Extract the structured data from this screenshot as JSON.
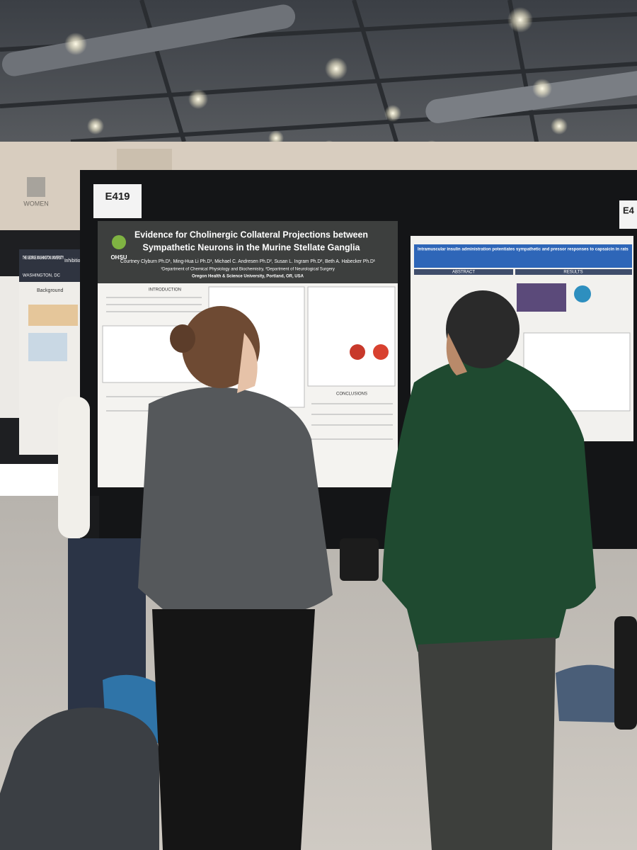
{
  "restroom_sign": "WOMEN",
  "left_poster": {
    "institution": "THE GEORGE WASHINGTON UNIVERSITY",
    "location": "WASHINGTON, DC",
    "title_fragment": "Inhibition",
    "section": "Background"
  },
  "main_poster": {
    "board_number": "E419",
    "logo": "OHSU",
    "title_lines": [
      "Evidence for Cholinergic Collateral Projections between",
      "Sympathetic Neurons in the Murine Stellate Ganglia"
    ],
    "authors": "Courtney Clyburn Ph.D¹, Ming-Hua Li Ph.D¹, Michael C. Andresen Ph.D², Susan L. Ingram Ph.D², Beth A. Habecker Ph.D¹",
    "affiliation_lines": [
      "¹Department of Chemical Physiology and Biochemistry, ²Department of Neurological Surgery",
      "Oregon Health & Science University, Portland, OR, USA"
    ],
    "sections": [
      "INTRODUCTION",
      "CONCLUSIONS"
    ]
  },
  "right_poster": {
    "board_number": "E4",
    "title": "Intramuscular insulin administration potentiates sympathetic and pressor responses to capsaicin in rats",
    "sections": [
      "ABSTRACT",
      "RESULTS"
    ]
  }
}
